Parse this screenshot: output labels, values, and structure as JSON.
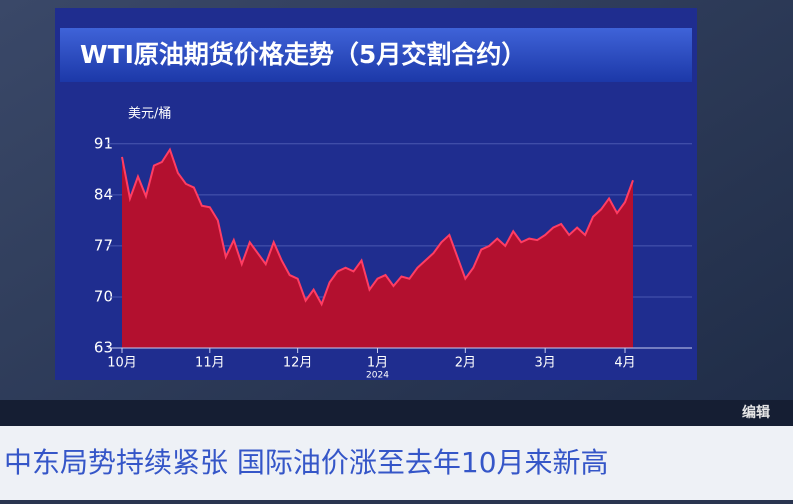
{
  "chart_data": {
    "type": "area",
    "title": "WTI原油期货价格走势（5月交割合约）",
    "y_unit": "美元/桶",
    "categories": [
      "10月",
      null,
      null,
      null,
      null,
      null,
      null,
      null,
      null,
      null,
      null,
      "11月",
      null,
      null,
      null,
      null,
      null,
      null,
      null,
      null,
      null,
      null,
      "12月",
      null,
      null,
      null,
      null,
      null,
      null,
      null,
      null,
      null,
      "1月",
      null,
      null,
      null,
      null,
      null,
      null,
      null,
      null,
      null,
      null,
      "2月",
      null,
      null,
      null,
      null,
      null,
      null,
      null,
      null,
      null,
      "3月",
      null,
      null,
      null,
      null,
      null,
      null,
      null,
      null,
      null,
      "4月",
      null
    ],
    "year_label": "2024",
    "series": [
      {
        "name": "WTI",
        "color": "#b3102f",
        "line_color": "#ff3d63",
        "values": [
          89.2,
          83.5,
          86.5,
          83.8,
          88.0,
          88.5,
          90.2,
          87.0,
          85.5,
          85.0,
          82.5,
          82.3,
          80.5,
          75.5,
          77.8,
          74.5,
          77.5,
          76.0,
          74.5,
          77.5,
          75.0,
          73.0,
          72.5,
          69.5,
          71.0,
          69.0,
          72.0,
          73.5,
          74.0,
          73.5,
          75.0,
          71.0,
          72.5,
          73.0,
          71.5,
          72.8,
          72.5,
          74.0,
          75.0,
          76.0,
          77.5,
          78.5,
          75.5,
          72.5,
          74.0,
          76.5,
          77.0,
          78.0,
          77.0,
          79.0,
          77.5,
          78.0,
          77.8,
          78.5,
          79.5,
          80.0,
          78.5,
          79.5,
          78.5,
          81.0,
          82.0,
          83.5,
          81.5,
          83.0,
          86.0
        ]
      }
    ],
    "ylim": [
      63,
      97
    ],
    "yticks": [
      63,
      70,
      77,
      84,
      91
    ],
    "grid": true
  },
  "caption": "中东局势持续紧张 国际油价涨至去年10月来新高",
  "corner_text": "编辑"
}
